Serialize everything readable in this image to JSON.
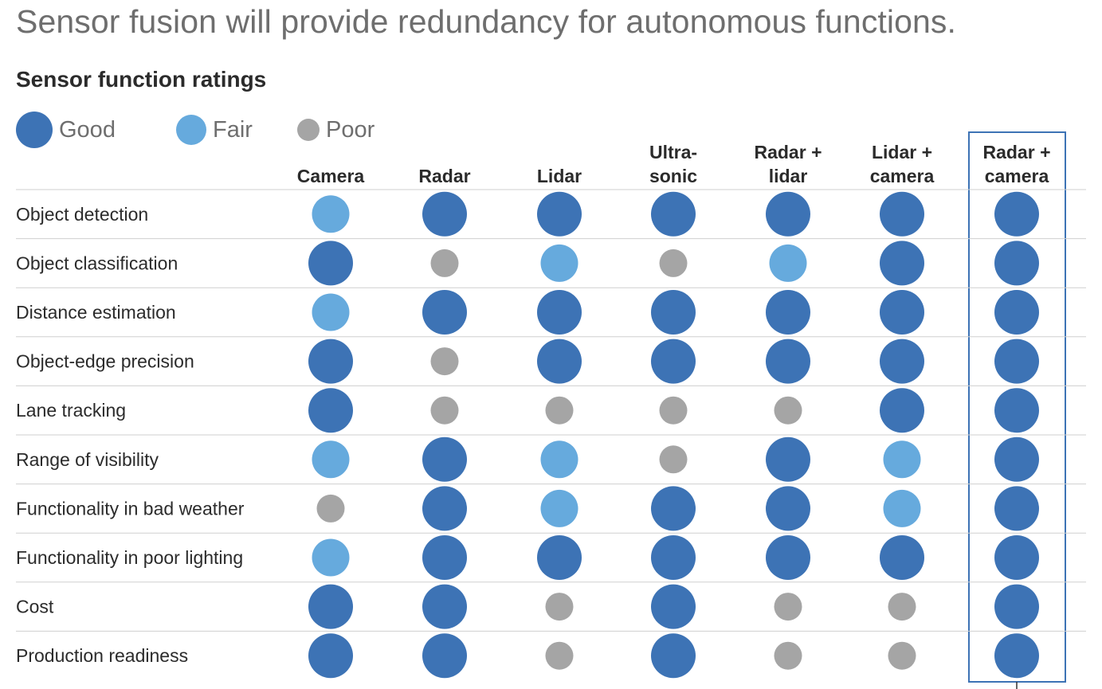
{
  "headline": "Sensor fusion will provide redundancy for autonomous functions.",
  "subtitle": "Sensor function ratings",
  "colors": {
    "good": "#3d73b5",
    "fair": "#66aadd",
    "poor": "#a5a5a5",
    "grid": "#cfcfcf",
    "highlight": "#3d73b5"
  },
  "chart_data": {
    "type": "table",
    "title": "Sensor function ratings",
    "legend": [
      {
        "key": "good",
        "label": "Good"
      },
      {
        "key": "fair",
        "label": "Fair"
      },
      {
        "key": "poor",
        "label": "Poor"
      }
    ],
    "columns": [
      [
        "Camera"
      ],
      [
        "Radar"
      ],
      [
        "Lidar"
      ],
      [
        "Ultra-",
        "sonic"
      ],
      [
        "Radar +",
        "lidar"
      ],
      [
        "Lidar +",
        "camera"
      ],
      [
        "Radar +",
        "camera"
      ]
    ],
    "highlighted_column": "Radar + camera",
    "rows": [
      {
        "label": "Object detection",
        "ratings": [
          "fair",
          "good",
          "good",
          "good",
          "good",
          "good",
          "good"
        ]
      },
      {
        "label": "Object classification",
        "ratings": [
          "good",
          "poor",
          "fair",
          "poor",
          "fair",
          "good",
          "good"
        ]
      },
      {
        "label": "Distance estimation",
        "ratings": [
          "fair",
          "good",
          "good",
          "good",
          "good",
          "good",
          "good"
        ]
      },
      {
        "label": "Object-edge precision",
        "ratings": [
          "good",
          "poor",
          "good",
          "good",
          "good",
          "good",
          "good"
        ]
      },
      {
        "label": "Lane tracking",
        "ratings": [
          "good",
          "poor",
          "poor",
          "poor",
          "poor",
          "good",
          "good"
        ]
      },
      {
        "label": "Range of visibility",
        "ratings": [
          "fair",
          "good",
          "fair",
          "poor",
          "good",
          "fair",
          "good"
        ]
      },
      {
        "label": "Functionality in bad weather",
        "ratings": [
          "poor",
          "good",
          "fair",
          "good",
          "good",
          "fair",
          "good"
        ]
      },
      {
        "label": "Functionality in poor lighting",
        "ratings": [
          "fair",
          "good",
          "good",
          "good",
          "good",
          "good",
          "good"
        ]
      },
      {
        "label": "Cost",
        "ratings": [
          "good",
          "good",
          "poor",
          "good",
          "poor",
          "poor",
          "good"
        ]
      },
      {
        "label": "Production readiness",
        "ratings": [
          "good",
          "good",
          "poor",
          "good",
          "poor",
          "poor",
          "good"
        ]
      }
    ]
  }
}
